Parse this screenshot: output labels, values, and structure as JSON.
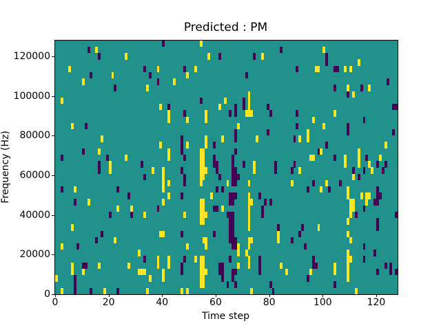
{
  "figure": {
    "background": "#ffffff",
    "text_color": "#000000"
  },
  "chart_data": {
    "type": "heatmap",
    "title": "Predicted : PM",
    "xlabel": "Time step",
    "ylabel": "Frequency (Hz)",
    "x_range": [
      0,
      128
    ],
    "y_range": [
      0,
      128000
    ],
    "x_ticks": [
      0,
      20,
      40,
      60,
      80,
      100,
      120
    ],
    "y_ticks": [
      0,
      20000,
      40000,
      60000,
      80000,
      100000,
      120000
    ],
    "grid_cols": 128,
    "grid_rows": 40,
    "legend": "none",
    "grid": false,
    "colors": {
      "background_class": "#21918c",
      "low_class": "#440154",
      "high_class": "#fde725",
      "axis": "#000000"
    },
    "cells_yellow": [
      [
        15,
        38
      ],
      [
        26,
        37
      ],
      [
        5,
        35
      ],
      [
        21,
        34
      ],
      [
        10,
        33
      ],
      [
        2,
        30
      ],
      [
        6,
        26
      ],
      [
        17,
        24
      ],
      [
        16,
        22
      ],
      [
        26,
        21
      ],
      [
        20,
        20
      ],
      [
        20,
        19
      ],
      [
        54,
        39
      ],
      [
        57,
        37
      ],
      [
        38,
        35
      ],
      [
        52,
        35
      ],
      [
        49,
        34
      ],
      [
        44,
        33
      ],
      [
        34,
        32
      ],
      [
        39,
        29
      ],
      [
        61,
        29
      ],
      [
        42,
        28
      ],
      [
        42,
        27
      ],
      [
        56,
        28
      ],
      [
        56,
        27
      ],
      [
        49,
        27
      ],
      [
        56,
        24
      ],
      [
        56,
        23
      ],
      [
        62,
        24
      ],
      [
        39,
        23
      ],
      [
        49,
        23
      ],
      [
        54,
        22
      ],
      [
        55,
        22
      ],
      [
        54,
        21
      ],
      [
        55,
        21
      ],
      [
        54,
        20
      ],
      [
        55,
        20
      ],
      [
        42,
        22
      ],
      [
        42,
        21
      ],
      [
        77,
        37
      ],
      [
        63,
        30
      ],
      [
        72,
        31
      ],
      [
        72,
        30
      ],
      [
        72,
        29
      ],
      [
        72,
        28
      ],
      [
        71,
        28
      ],
      [
        73,
        28
      ],
      [
        68,
        26
      ],
      [
        94,
        25
      ],
      [
        94,
        24
      ],
      [
        91,
        24
      ],
      [
        75,
        24
      ],
      [
        74,
        20
      ],
      [
        95,
        21
      ],
      [
        100,
        38
      ],
      [
        113,
        36
      ],
      [
        97,
        35
      ],
      [
        98,
        35
      ],
      [
        108,
        35
      ],
      [
        110,
        35
      ],
      [
        109,
        32
      ],
      [
        117,
        32
      ],
      [
        111,
        31
      ],
      [
        104,
        28
      ],
      [
        96,
        27
      ],
      [
        100,
        26
      ],
      [
        123,
        23
      ],
      [
        99,
        22
      ],
      [
        96,
        21
      ],
      [
        108,
        21
      ],
      [
        108,
        20
      ],
      [
        113,
        22
      ],
      [
        113,
        21
      ],
      [
        113,
        20
      ],
      [
        117,
        20
      ],
      [
        121,
        21
      ],
      [
        7,
        16
      ],
      [
        12,
        14
      ],
      [
        23,
        13
      ],
      [
        28,
        13
      ],
      [
        6,
        10
      ],
      [
        22,
        8
      ],
      [
        2,
        7
      ],
      [
        31,
        6
      ],
      [
        6,
        4
      ],
      [
        16,
        4
      ],
      [
        27,
        4
      ],
      [
        10,
        3
      ],
      [
        6,
        3
      ],
      [
        31,
        3
      ],
      [
        0,
        2
      ],
      [
        2,
        0
      ],
      [
        18,
        0
      ],
      [
        36,
        19
      ],
      [
        40,
        19
      ],
      [
        40,
        18
      ],
      [
        40,
        17
      ],
      [
        40,
        16
      ],
      [
        42,
        17
      ],
      [
        42,
        15
      ],
      [
        54,
        19
      ],
      [
        55,
        19
      ],
      [
        54,
        18
      ],
      [
        55,
        18
      ],
      [
        54,
        17
      ],
      [
        56,
        19
      ],
      [
        58,
        15
      ],
      [
        40,
        14
      ],
      [
        62,
        13
      ],
      [
        33,
        12
      ],
      [
        48,
        12
      ],
      [
        54,
        14
      ],
      [
        55,
        14
      ],
      [
        54,
        13
      ],
      [
        55,
        13
      ],
      [
        54,
        12
      ],
      [
        55,
        12
      ],
      [
        56,
        12
      ],
      [
        54,
        11
      ],
      [
        55,
        11
      ],
      [
        39,
        9
      ],
      [
        40,
        9
      ],
      [
        55,
        8
      ],
      [
        56,
        8
      ],
      [
        56,
        7
      ],
      [
        49,
        7
      ],
      [
        38,
        5
      ],
      [
        38,
        4
      ],
      [
        42,
        5
      ],
      [
        42,
        4
      ],
      [
        52,
        5
      ],
      [
        54,
        5
      ],
      [
        55,
        5
      ],
      [
        54,
        4
      ],
      [
        55,
        4
      ],
      [
        54,
        3
      ],
      [
        55,
        3
      ],
      [
        56,
        3
      ],
      [
        54,
        2
      ],
      [
        55,
        2
      ],
      [
        54,
        1
      ],
      [
        55,
        1
      ],
      [
        33,
        3
      ],
      [
        32,
        3
      ],
      [
        35,
        2
      ],
      [
        40,
        3
      ],
      [
        40,
        2
      ],
      [
        47,
        0
      ],
      [
        49,
        0
      ],
      [
        34,
        0
      ],
      [
        74,
        19
      ],
      [
        91,
        19
      ],
      [
        64,
        17
      ],
      [
        72,
        17
      ],
      [
        88,
        17
      ],
      [
        72,
        15
      ],
      [
        72,
        14
      ],
      [
        73,
        14
      ],
      [
        72,
        13
      ],
      [
        72,
        12
      ],
      [
        72,
        11
      ],
      [
        72,
        10
      ],
      [
        72,
        8
      ],
      [
        73,
        8
      ],
      [
        72,
        7
      ],
      [
        72,
        5
      ],
      [
        72,
        4
      ],
      [
        71,
        6
      ],
      [
        68,
        7
      ],
      [
        68,
        6
      ],
      [
        68,
        4
      ],
      [
        83,
        9
      ],
      [
        83,
        8
      ],
      [
        84,
        4
      ],
      [
        86,
        3
      ],
      [
        95,
        3
      ],
      [
        73,
        0
      ],
      [
        118,
        19
      ],
      [
        101,
        17
      ],
      [
        111,
        18
      ],
      [
        99,
        16
      ],
      [
        109,
        16
      ],
      [
        109,
        15
      ],
      [
        114,
        15
      ],
      [
        116,
        15
      ],
      [
        117,
        15
      ],
      [
        116,
        14
      ],
      [
        110,
        14
      ],
      [
        111,
        14
      ],
      [
        110,
        13
      ],
      [
        111,
        13
      ],
      [
        110,
        12
      ],
      [
        109,
        11
      ],
      [
        98,
        10
      ],
      [
        109,
        9
      ],
      [
        110,
        8
      ],
      [
        109,
        6
      ],
      [
        109,
        5
      ],
      [
        110,
        5
      ],
      [
        109,
        4
      ],
      [
        109,
        3
      ],
      [
        109,
        2
      ],
      [
        104,
        4
      ],
      [
        104,
        3
      ],
      [
        112,
        0
      ]
    ],
    "cells_purple": [
      [
        12,
        38
      ],
      [
        16,
        37
      ],
      [
        13,
        34
      ],
      [
        22,
        32
      ],
      [
        11,
        26
      ],
      [
        10,
        22
      ],
      [
        2,
        21
      ],
      [
        19,
        21
      ],
      [
        16,
        20
      ],
      [
        40,
        39
      ],
      [
        61,
        37
      ],
      [
        33,
        35
      ],
      [
        48,
        35
      ],
      [
        35,
        34
      ],
      [
        38,
        33
      ],
      [
        42,
        29
      ],
      [
        54,
        30
      ],
      [
        48,
        28
      ],
      [
        47,
        24
      ],
      [
        47,
        23
      ],
      [
        47,
        22
      ],
      [
        59,
        23
      ],
      [
        59,
        21
      ],
      [
        59,
        20
      ],
      [
        60,
        20
      ],
      [
        32,
        20
      ],
      [
        48,
        21
      ],
      [
        84,
        38
      ],
      [
        74,
        37
      ],
      [
        90,
        35
      ],
      [
        71,
        34
      ],
      [
        70,
        30
      ],
      [
        70,
        29
      ],
      [
        79,
        29
      ],
      [
        80,
        28
      ],
      [
        65,
        28
      ],
      [
        67,
        29
      ],
      [
        67,
        28
      ],
      [
        90,
        28
      ],
      [
        90,
        26
      ],
      [
        67,
        25
      ],
      [
        79,
        25
      ],
      [
        89,
        24
      ],
      [
        67,
        24
      ],
      [
        67,
        22
      ],
      [
        66,
        21
      ],
      [
        66,
        20
      ],
      [
        82,
        20
      ],
      [
        70,
        20
      ],
      [
        89,
        20
      ],
      [
        101,
        37
      ],
      [
        101,
        36
      ],
      [
        104,
        35
      ],
      [
        105,
        35
      ],
      [
        124,
        33
      ],
      [
        104,
        32
      ],
      [
        114,
        32
      ],
      [
        109,
        31
      ],
      [
        126,
        29
      ],
      [
        127,
        29
      ],
      [
        115,
        27
      ],
      [
        109,
        26
      ],
      [
        109,
        25
      ],
      [
        126,
        25
      ],
      [
        101,
        23
      ],
      [
        98,
        22
      ],
      [
        104,
        21
      ],
      [
        116,
        21
      ],
      [
        120,
        20
      ],
      [
        123,
        20
      ],
      [
        16,
        19
      ],
      [
        2,
        16
      ],
      [
        23,
        16
      ],
      [
        27,
        15
      ],
      [
        7,
        14
      ],
      [
        20,
        12
      ],
      [
        28,
        12
      ],
      [
        17,
        9
      ],
      [
        15,
        8
      ],
      [
        8,
        7
      ],
      [
        10,
        4
      ],
      [
        11,
        4
      ],
      [
        7,
        2
      ],
      [
        7,
        1
      ],
      [
        7,
        0
      ],
      [
        13,
        0
      ],
      [
        23,
        0
      ],
      [
        33,
        18
      ],
      [
        47,
        19
      ],
      [
        48,
        18
      ],
      [
        48,
        17
      ],
      [
        47,
        15
      ],
      [
        60,
        19
      ],
      [
        61,
        18
      ],
      [
        60,
        16
      ],
      [
        62,
        16
      ],
      [
        38,
        13
      ],
      [
        59,
        13
      ],
      [
        60,
        13
      ],
      [
        59,
        9
      ],
      [
        47,
        9
      ],
      [
        33,
        5
      ],
      [
        48,
        5
      ],
      [
        47,
        4
      ],
      [
        47,
        3
      ],
      [
        61,
        4
      ],
      [
        62,
        4
      ],
      [
        61,
        3
      ],
      [
        62,
        3
      ],
      [
        62,
        2
      ],
      [
        66,
        19
      ],
      [
        67,
        19
      ],
      [
        66,
        18
      ],
      [
        67,
        18
      ],
      [
        68,
        18
      ],
      [
        66,
        17
      ],
      [
        67,
        17
      ],
      [
        82,
        19
      ],
      [
        88,
        19
      ],
      [
        94,
        16
      ],
      [
        65,
        15
      ],
      [
        66,
        15
      ],
      [
        67,
        15
      ],
      [
        65,
        14
      ],
      [
        66,
        14
      ],
      [
        64,
        12
      ],
      [
        65,
        12
      ],
      [
        66,
        12
      ],
      [
        65,
        11
      ],
      [
        66,
        11
      ],
      [
        65,
        10
      ],
      [
        66,
        10
      ],
      [
        65,
        9
      ],
      [
        66,
        9
      ],
      [
        65,
        8
      ],
      [
        66,
        8
      ],
      [
        67,
        8
      ],
      [
        66,
        7
      ],
      [
        67,
        7
      ],
      [
        65,
        5
      ],
      [
        66,
        3
      ],
      [
        67,
        3
      ],
      [
        66,
        2
      ],
      [
        67,
        1
      ],
      [
        64,
        1
      ],
      [
        76,
        15
      ],
      [
        78,
        14
      ],
      [
        80,
        14
      ],
      [
        77,
        13
      ],
      [
        77,
        12
      ],
      [
        76,
        5
      ],
      [
        76,
        4
      ],
      [
        76,
        3
      ],
      [
        83,
        10
      ],
      [
        88,
        8
      ],
      [
        92,
        10
      ],
      [
        91,
        9
      ],
      [
        93,
        7
      ],
      [
        94,
        2
      ],
      [
        80,
        1
      ],
      [
        81,
        0
      ],
      [
        111,
        19
      ],
      [
        115,
        19
      ],
      [
        122,
        19
      ],
      [
        96,
        17
      ],
      [
        106,
        17
      ],
      [
        113,
        18
      ],
      [
        102,
        16
      ],
      [
        120,
        16
      ],
      [
        120,
        15
      ],
      [
        121,
        15
      ],
      [
        120,
        14
      ],
      [
        119,
        14
      ],
      [
        115,
        13
      ],
      [
        112,
        12
      ],
      [
        127,
        12
      ],
      [
        120,
        11
      ],
      [
        120,
        10
      ],
      [
        115,
        7
      ],
      [
        96,
        5
      ],
      [
        96,
        4
      ],
      [
        97,
        4
      ],
      [
        115,
        5
      ],
      [
        119,
        6
      ],
      [
        123,
        4
      ],
      [
        125,
        4
      ],
      [
        125,
        3
      ],
      [
        127,
        3
      ],
      [
        120,
        3
      ],
      [
        104,
        1
      ]
    ]
  }
}
